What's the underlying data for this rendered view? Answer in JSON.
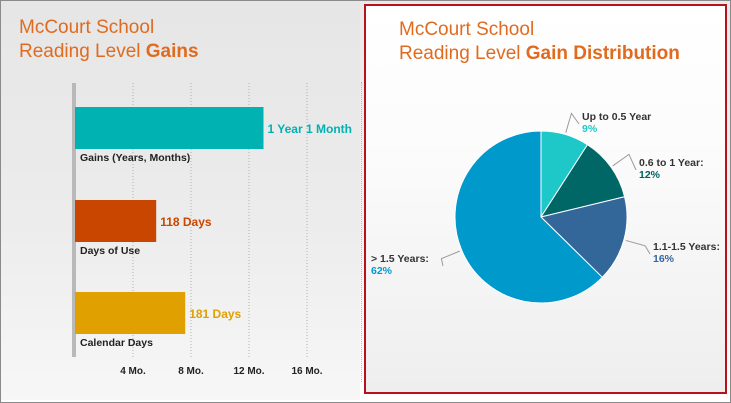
{
  "left_panel": {
    "title_line1": "McCourt School",
    "title_line2_prefix": "Reading Level ",
    "title_line2_bold": "Gains"
  },
  "right_panel": {
    "title_line1": "McCourt School",
    "title_line2_prefix": "Reading Level ",
    "title_line2_bold": "Gain Distribution"
  },
  "chart_data": [
    {
      "type": "bar",
      "orientation": "horizontal",
      "categories": [
        "Gains (Years, Months)",
        "Days of Use",
        "Calendar Days"
      ],
      "values": [
        13,
        5.6,
        7.6
      ],
      "value_labels": [
        "1 Year 1 Month",
        "118 Days",
        "181 Days"
      ],
      "colors": [
        "#00b2b2",
        "#c84600",
        "#e0a000"
      ],
      "x_unit": "Mo.",
      "xlim": [
        0,
        19
      ],
      "x_ticks": [
        4,
        8,
        12,
        16
      ],
      "x_tick_labels": [
        "4 Mo.",
        "8 Mo.",
        "12 Mo.",
        "16 Mo."
      ],
      "grid": "vertical"
    },
    {
      "type": "pie",
      "slices": [
        {
          "label": "Up to 0.5 Year",
          "percent_label": "9%",
          "value": 9,
          "color": "#1ec8c8",
          "label_color": "#1ec8c8"
        },
        {
          "label": "0.6 to 1 Year:",
          "percent_label": "12%",
          "value": 12,
          "color": "#006666",
          "label_color": "#006060"
        },
        {
          "label": "1.1-1.5 Years:",
          "percent_label": "16%",
          "value": 16,
          "color": "#336699",
          "label_color": "#336699"
        },
        {
          "label": "> 1.5 Years:",
          "percent_label": "62%",
          "value": 62,
          "color": "#0099cc",
          "label_color": "#0099cc"
        }
      ]
    }
  ]
}
